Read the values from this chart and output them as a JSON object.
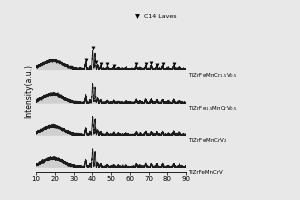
{
  "title": "",
  "xlabel": "",
  "ylabel": "Intensity(a.u.)",
  "xlim": [
    10,
    90
  ],
  "ylim": [
    -0.1,
    5.2
  ],
  "xticks": [
    10,
    20,
    30,
    40,
    50,
    60,
    70,
    80,
    90
  ],
  "legend_label": "C14 Laves",
  "sample_labels": [
    "TiZrFeMnCrV",
    "TiZrFeMnCrV$_2$",
    "TiZrFe$_{1.5}$MnCrV$_{0.5}$",
    "TiZrFeMnCr$_{1.5}$V$_{0.5}$"
  ],
  "offsets": [
    0.05,
    1.1,
    2.15,
    3.25
  ],
  "c14_marker_positions": [
    36.5,
    40.2,
    42.0,
    44.5,
    48.0,
    51.5,
    63.5,
    68.5,
    71.5,
    74.5,
    77.5,
    83.5
  ],
  "background_color": "#e8e8e8",
  "line_color": "#111111",
  "label_fontsize": 4.0,
  "ylabel_fontsize": 5.5
}
